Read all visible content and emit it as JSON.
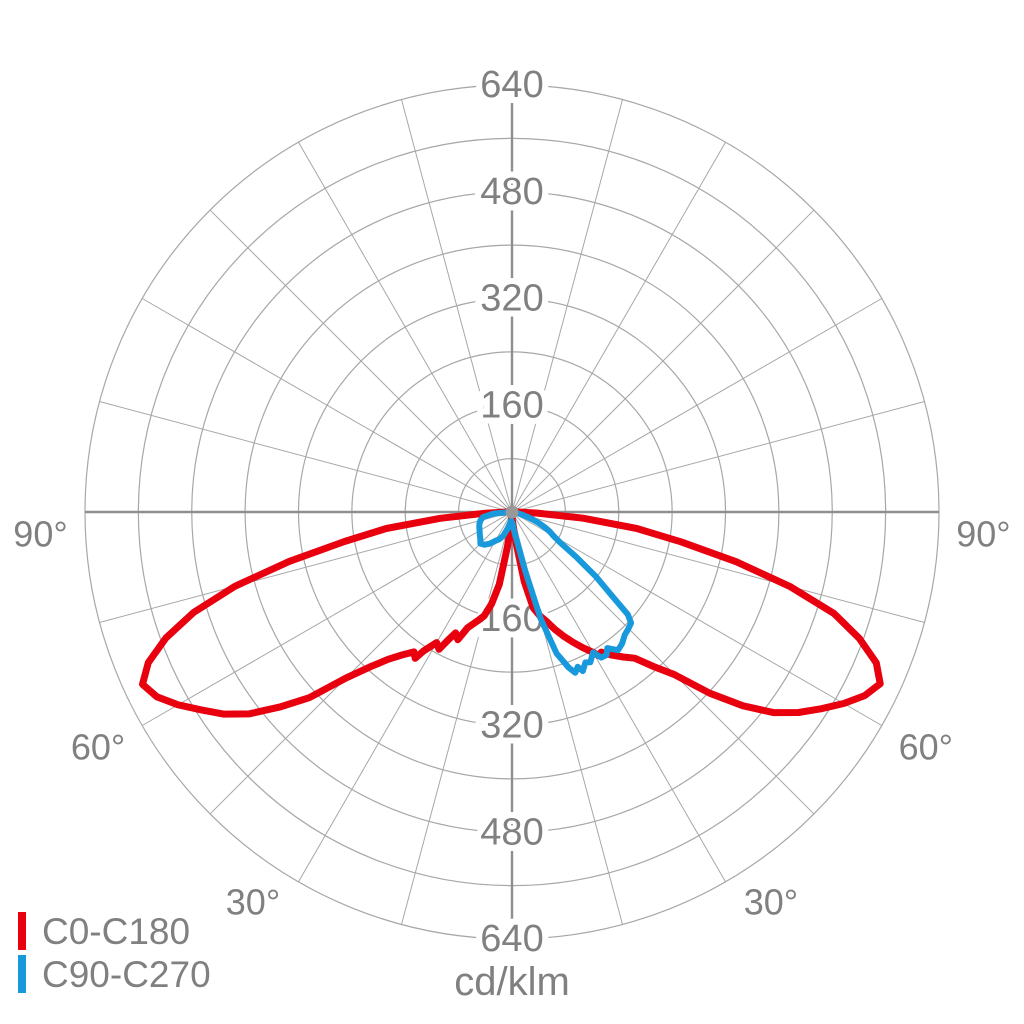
{
  "chart_data": {
    "type": "polar_photometric_distribution",
    "unit_label": "cd/klm",
    "radial_axis": {
      "min": 0,
      "max": 640,
      "ring_step": 80,
      "labeled_ticks": [
        160,
        320,
        480,
        640
      ],
      "px_radius_at_max": 427
    },
    "angular_axis": {
      "zero_direction": "down",
      "spoke_step_deg": 15,
      "labeled_angles_deg": [
        30,
        60,
        90
      ],
      "angle_label_suffix": "°"
    },
    "grid": {
      "grid_color": "#a7a7a7",
      "axis_color": "#8f8f8f",
      "label_color": "#808080",
      "center_dot_color": "#999999",
      "background": "#ffffff"
    },
    "series": [
      {
        "name": "C0-C180",
        "color": "#e8000f",
        "stroke_width": 7,
        "points": [
          [
            -90,
            8
          ],
          [
            -87.5,
            40
          ],
          [
            -85,
            108
          ],
          [
            -82.5,
            190
          ],
          [
            -80,
            255
          ],
          [
            -77.5,
            342
          ],
          [
            -75,
            430
          ],
          [
            -72.5,
            500
          ],
          [
            -70,
            552
          ],
          [
            -67.5,
            590
          ],
          [
            -65,
            611
          ],
          [
            -62.5,
            600
          ],
          [
            -60,
            578
          ],
          [
            -57.5,
            552
          ],
          [
            -55,
            528
          ],
          [
            -52.5,
            497
          ],
          [
            -50,
            455
          ],
          [
            -47.5,
            412
          ],
          [
            -45,
            352
          ],
          [
            -42.5,
            315
          ],
          [
            -40,
            288
          ],
          [
            -37.5,
            270
          ],
          [
            -35,
            256
          ],
          [
            -33.5,
            263
          ],
          [
            -32.5,
            247
          ],
          [
            -30,
            226
          ],
          [
            -28,
            233
          ],
          [
            -26.5,
            214
          ],
          [
            -25,
            200
          ],
          [
            -23,
            208
          ],
          [
            -21,
            186
          ],
          [
            -17.5,
            171
          ],
          [
            -15,
            161
          ],
          [
            -12.5,
            141
          ],
          [
            -10,
            110
          ],
          [
            -7.5,
            52
          ],
          [
            -5,
            22
          ],
          [
            -2.5,
            11
          ],
          [
            0,
            6
          ],
          [
            2.5,
            11
          ],
          [
            5,
            21
          ],
          [
            7.5,
            46
          ],
          [
            10,
            106
          ],
          [
            12.5,
            147
          ],
          [
            15,
            161
          ],
          [
            17.5,
            172
          ],
          [
            20,
            187
          ],
          [
            22.5,
            201
          ],
          [
            25,
            215
          ],
          [
            27.5,
            229
          ],
          [
            30,
            243
          ],
          [
            31,
            251
          ],
          [
            32.5,
            249
          ],
          [
            35,
            262
          ],
          [
            37.5,
            274
          ],
          [
            40,
            286
          ],
          [
            42.5,
            314
          ],
          [
            45,
            345
          ],
          [
            47.5,
            402
          ],
          [
            50,
            452
          ],
          [
            52.5,
            494
          ],
          [
            55,
            524
          ],
          [
            57.5,
            549
          ],
          [
            60,
            574
          ],
          [
            62.5,
            596
          ],
          [
            65,
            609
          ],
          [
            67.5,
            591
          ],
          [
            70,
            554
          ],
          [
            72.5,
            506
          ],
          [
            75,
            431
          ],
          [
            77.5,
            344
          ],
          [
            80,
            257
          ],
          [
            82.5,
            188
          ],
          [
            85,
            107
          ],
          [
            87.5,
            38
          ],
          [
            90,
            8
          ]
        ]
      },
      {
        "name": "C90-C270",
        "color": "#1899dc",
        "stroke_width": 6,
        "points": [
          [
            -90,
            3
          ],
          [
            -85,
            28
          ],
          [
            -80,
            44
          ],
          [
            -75,
            49
          ],
          [
            -70,
            52
          ],
          [
            -65,
            54
          ],
          [
            -60,
            56
          ],
          [
            -55,
            59
          ],
          [
            -50,
            62
          ],
          [
            -45,
            67
          ],
          [
            -40,
            64
          ],
          [
            -35,
            58
          ],
          [
            -30,
            50
          ],
          [
            -25,
            45
          ],
          [
            -20,
            38
          ],
          [
            -15,
            26
          ],
          [
            -10,
            17
          ],
          [
            -5,
            13
          ],
          [
            -2.5,
            14
          ],
          [
            0,
            15
          ],
          [
            2.5,
            17
          ],
          [
            5,
            24
          ],
          [
            7.5,
            34
          ],
          [
            10,
            48
          ],
          [
            12.5,
            88
          ],
          [
            15,
            165
          ],
          [
            17.5,
            222
          ],
          [
            20,
            248
          ],
          [
            21.5,
            259
          ],
          [
            23,
            252
          ],
          [
            24,
            261
          ],
          [
            26,
            251
          ],
          [
            27.5,
            254
          ],
          [
            30,
            243
          ],
          [
            31.5,
            256
          ],
          [
            33.5,
            257
          ],
          [
            35,
            249
          ],
          [
            37.5,
            261
          ],
          [
            40,
            257
          ],
          [
            42.5,
            250
          ],
          [
            45,
            247
          ],
          [
            47,
            244
          ],
          [
            48.5,
            232
          ],
          [
            50,
            196
          ],
          [
            52.5,
            158
          ],
          [
            55,
            118
          ],
          [
            57.5,
            86
          ],
          [
            60,
            72
          ],
          [
            62.5,
            64
          ],
          [
            65,
            54
          ],
          [
            67.5,
            44
          ],
          [
            70,
            34
          ],
          [
            72.5,
            24
          ],
          [
            75,
            15
          ],
          [
            80,
            7
          ],
          [
            85,
            4
          ],
          [
            90,
            2
          ]
        ]
      }
    ]
  },
  "legend": {
    "items": [
      {
        "label": "C0-C180",
        "color": "#e8000f"
      },
      {
        "label": "C90-C270",
        "color": "#1899dc"
      }
    ]
  }
}
